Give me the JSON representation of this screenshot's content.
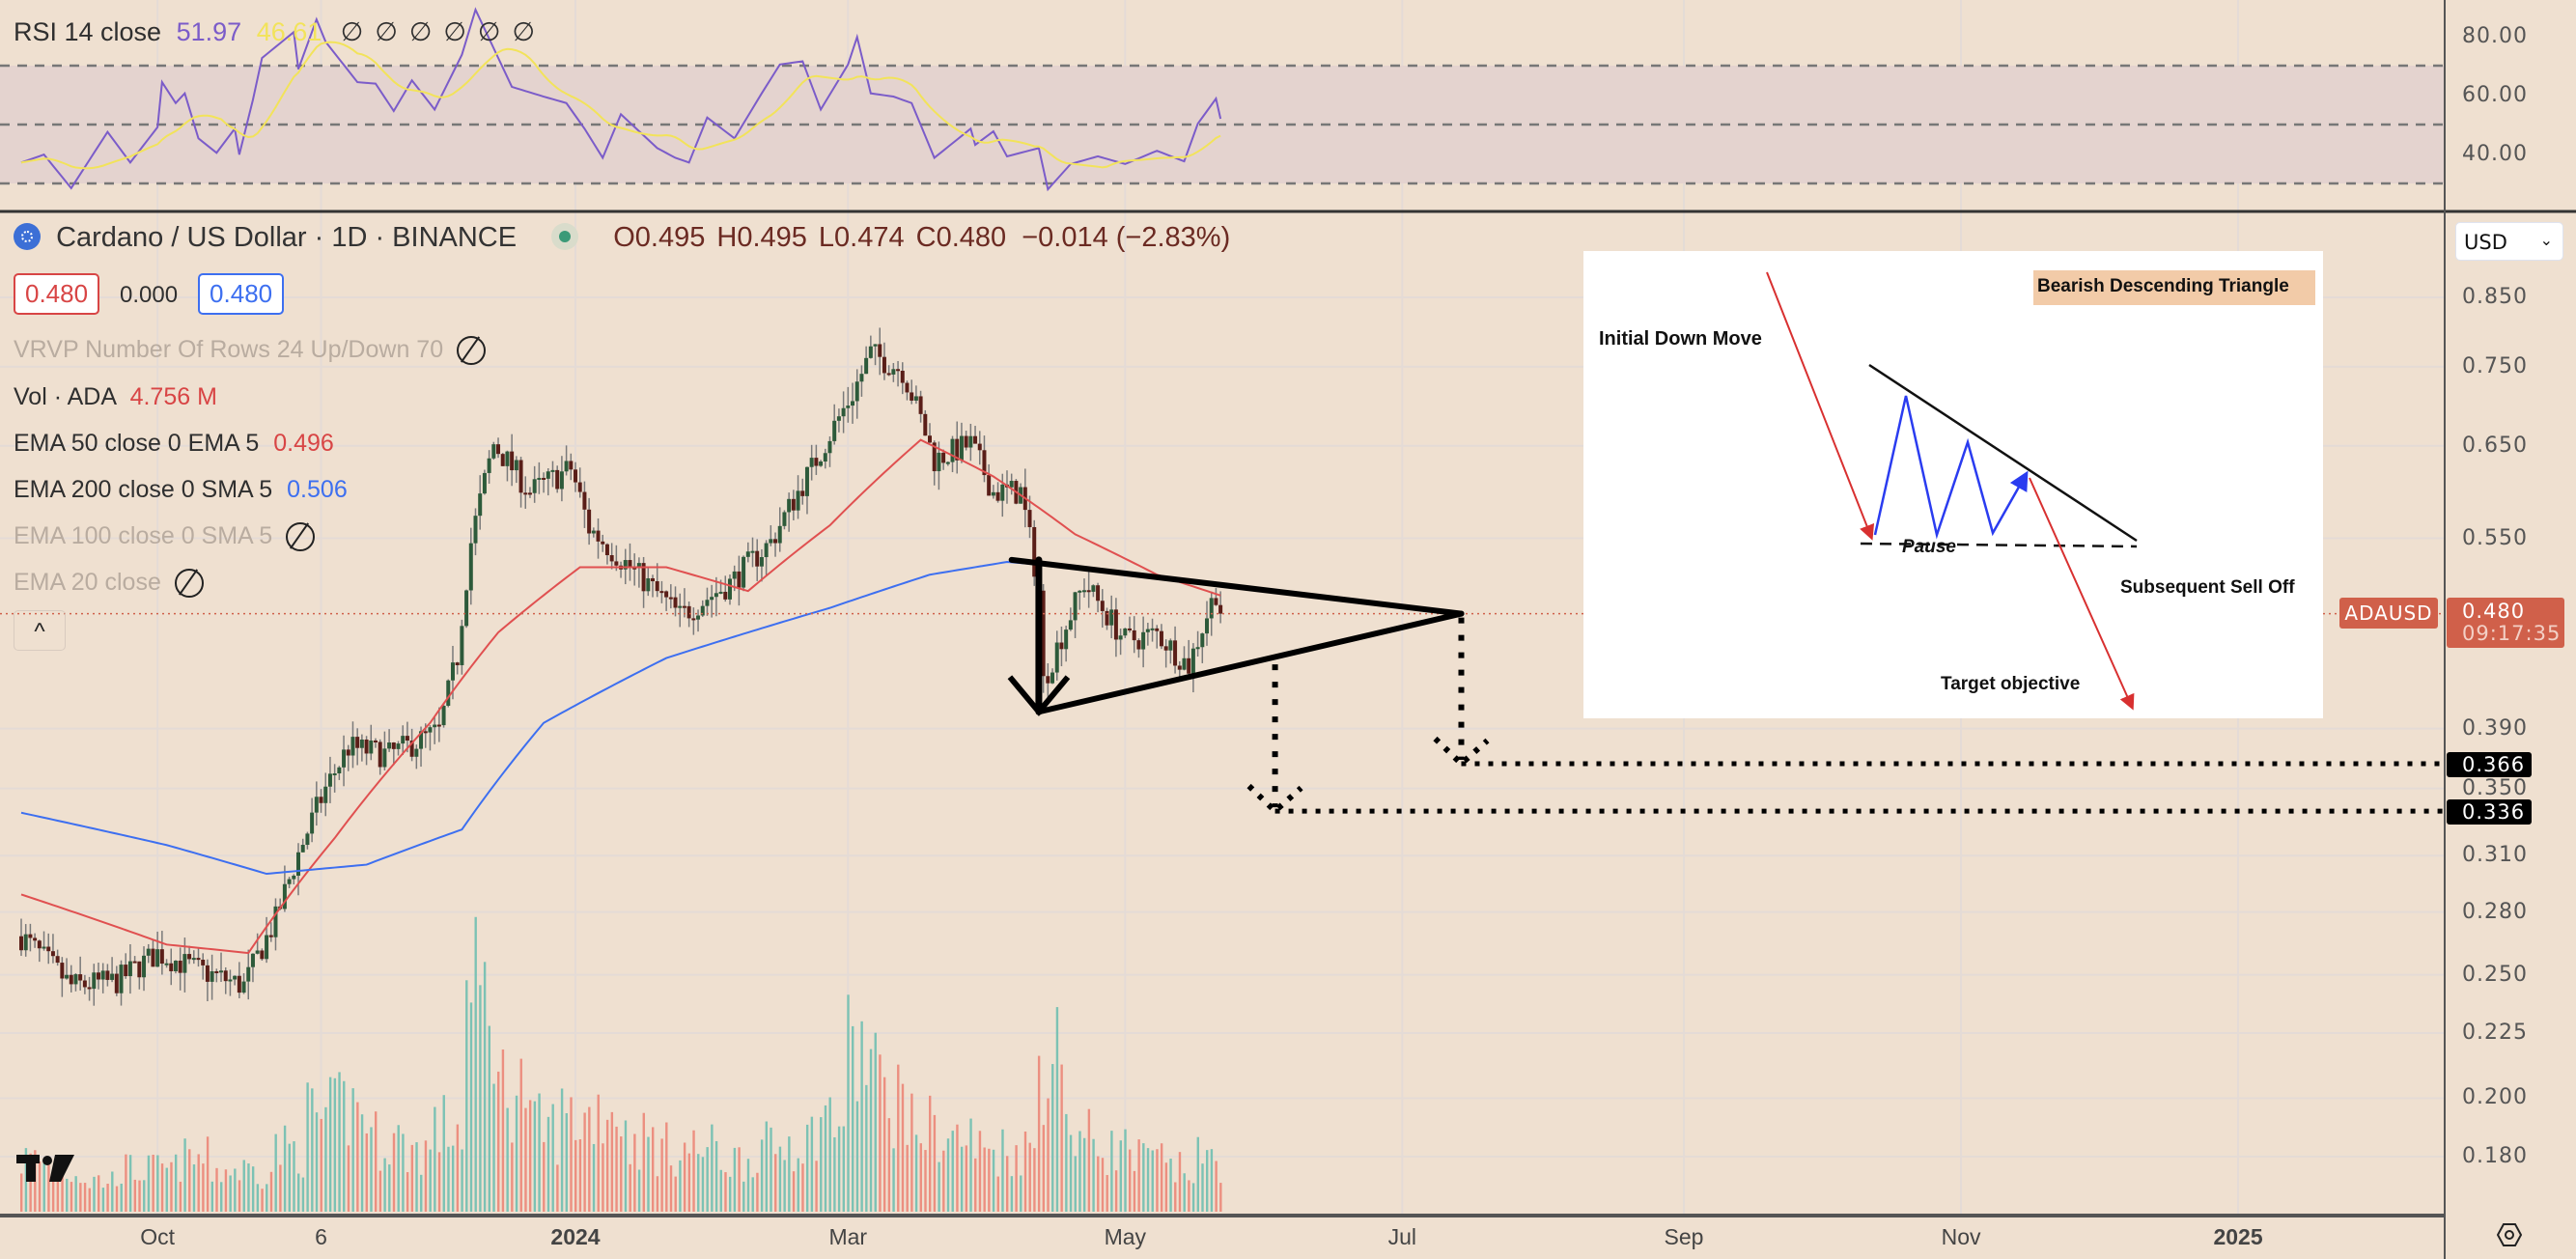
{
  "header": {
    "symbol_title": "Cardano / US Dollar · 1D · BINANCE",
    "ohlc": [
      {
        "label": "O",
        "value": "0.495"
      },
      {
        "label": "H",
        "value": "0.495"
      },
      {
        "label": "L",
        "value": "0.474"
      },
      {
        "label": "C",
        "value": "0.480"
      }
    ],
    "change": "−0.014 (−2.83%)",
    "bid": "0.480",
    "spread": "0.000",
    "ask": "0.480"
  },
  "indicators": {
    "rsi": {
      "label": "RSI 14 close",
      "value": "51.97",
      "ma_value": "46.61",
      "hidden_marks": [
        "∅",
        "∅",
        "∅",
        "∅",
        "∅",
        "∅"
      ]
    },
    "vrvp": {
      "label": "VRVP Number Of Rows 24 Up/Down 70"
    },
    "vol": {
      "label": "Vol · ADA",
      "value": "4.756 M"
    },
    "ema50": {
      "label": "EMA 50 close 0 EMA 5",
      "value": "0.496"
    },
    "ema200": {
      "label": "EMA 200 close 0 SMA 5",
      "value": "0.506"
    },
    "ema100": {
      "label": "EMA 100 close 0 SMA 5"
    },
    "ema20": {
      "label": "EMA 20 close"
    },
    "collapse_glyph": "^"
  },
  "price_axis": {
    "currency": "USD",
    "ticks": [
      "0.850",
      "0.750",
      "0.650",
      "0.550",
      "0.390",
      "0.350",
      "0.310",
      "0.280",
      "0.250",
      "0.225",
      "0.200",
      "0.180"
    ],
    "last_price_label": "ADAUSD",
    "last_price": "0.480",
    "countdown": "09:17:35",
    "target_labels": [
      "0.366",
      "0.336"
    ]
  },
  "rsi_axis": {
    "ticks": [
      "80.00",
      "60.00",
      "40.00"
    ]
  },
  "time_axis": {
    "ticks": [
      {
        "label": "Oct",
        "date": "2023-10-01"
      },
      {
        "label": "6",
        "date": "2023-11-06"
      },
      {
        "label": "2024",
        "date": "2024-01-01",
        "bold": true
      },
      {
        "label": "Mar",
        "date": "2024-03-01"
      },
      {
        "label": "May",
        "date": "2024-05-01"
      },
      {
        "label": "Jul",
        "date": "2024-07-01"
      },
      {
        "label": "Sep",
        "date": "2024-09-01"
      },
      {
        "label": "Nov",
        "date": "2024-11-01"
      },
      {
        "label": "2025",
        "date": "2025-01-01",
        "bold": true
      }
    ]
  },
  "inset": {
    "title": "Bearish Descending Triangle",
    "initial": "Initial Down Move",
    "pause": "Pause",
    "selloff": "Subsequent Sell Off",
    "target": "Target objective"
  },
  "colors": {
    "background": "#efe0d0",
    "up": "#2d5a3a",
    "down": "#5a1e18",
    "ema50": "#e05050",
    "ema200": "#3d6ff0",
    "rsi": "#7b5cc9",
    "rsi_ma": "#f2e35a",
    "vol_up": "#7cc2b4",
    "vol_down": "#ec8f80",
    "last_price": "#d0604a"
  },
  "chart_data": {
    "type": "candlestick",
    "scale": "log",
    "ylim": [
      0.165,
      0.93
    ],
    "xlim": [
      "2023-09-01",
      "2025-02-10"
    ],
    "grid": true,
    "closes": [
      [
        "2023-09-01",
        0.268
      ],
      [
        "2023-09-12",
        0.245
      ],
      [
        "2023-09-22",
        0.247
      ],
      [
        "2023-10-01",
        0.26
      ],
      [
        "2023-10-10",
        0.252
      ],
      [
        "2023-10-20",
        0.245
      ],
      [
        "2023-10-27",
        0.276
      ],
      [
        "2023-11-01",
        0.311
      ],
      [
        "2023-11-07",
        0.35
      ],
      [
        "2023-11-12",
        0.377
      ],
      [
        "2023-11-21",
        0.372
      ],
      [
        "2023-12-02",
        0.388
      ],
      [
        "2023-12-06",
        0.444
      ],
      [
        "2023-12-09",
        0.546
      ],
      [
        "2023-12-14",
        0.652
      ],
      [
        "2023-12-22",
        0.598
      ],
      [
        "2023-12-31",
        0.624
      ],
      [
        "2024-01-04",
        0.56
      ],
      [
        "2024-01-11",
        0.53
      ],
      [
        "2024-01-24",
        0.478
      ],
      [
        "2024-02-04",
        0.507
      ],
      [
        "2024-02-13",
        0.546
      ],
      [
        "2024-02-22",
        0.624
      ],
      [
        "2024-03-02",
        0.714
      ],
      [
        "2024-03-06",
        0.768
      ],
      [
        "2024-03-13",
        0.745
      ],
      [
        "2024-03-20",
        0.634
      ],
      [
        "2024-03-28",
        0.652
      ],
      [
        "2024-04-02",
        0.598
      ],
      [
        "2024-04-08",
        0.598
      ],
      [
        "2024-04-12",
        0.5
      ],
      [
        "2024-04-13",
        0.424
      ],
      [
        "2024-04-22",
        0.507
      ],
      [
        "2024-05-01",
        0.457
      ],
      [
        "2024-05-08",
        0.463
      ],
      [
        "2024-05-15",
        0.437
      ],
      [
        "2024-05-21",
        0.5
      ],
      [
        "2024-05-22",
        0.48
      ]
    ],
    "ema50": [
      [
        "2023-09-01",
        0.289
      ],
      [
        "2023-10-03",
        0.264
      ],
      [
        "2023-10-21",
        0.26
      ],
      [
        "2023-11-09",
        0.32
      ],
      [
        "2023-11-30",
        0.394
      ],
      [
        "2023-12-15",
        0.464
      ],
      [
        "2024-01-02",
        0.522
      ],
      [
        "2024-01-21",
        0.522
      ],
      [
        "2024-02-08",
        0.5
      ],
      [
        "2024-02-26",
        0.563
      ],
      [
        "2024-03-17",
        0.657
      ],
      [
        "2024-04-02",
        0.615
      ],
      [
        "2024-04-20",
        0.554
      ],
      [
        "2024-05-08",
        0.515
      ],
      [
        "2024-05-22",
        0.496
      ]
    ],
    "ema200": [
      [
        "2023-09-01",
        0.335
      ],
      [
        "2023-10-03",
        0.316
      ],
      [
        "2023-10-25",
        0.3
      ],
      [
        "2023-11-16",
        0.305
      ],
      [
        "2023-12-07",
        0.325
      ],
      [
        "2023-12-25",
        0.394
      ],
      [
        "2024-01-21",
        0.443
      ],
      [
        "2024-02-26",
        0.485
      ],
      [
        "2024-03-19",
        0.515
      ],
      [
        "2024-04-05",
        0.527
      ],
      [
        "2024-04-20",
        0.522
      ],
      [
        "2024-05-22",
        0.506
      ]
    ],
    "volume_weekly_relative": [
      0.25,
      0.2,
      0.15,
      0.2,
      0.2,
      0.25,
      0.2,
      0.2,
      0.3,
      0.45,
      0.5,
      0.35,
      0.3,
      0.4,
      1.0,
      0.6,
      0.4,
      0.45,
      0.5,
      0.35,
      0.3,
      0.3,
      0.25,
      0.3,
      0.35,
      0.45,
      0.75,
      0.55,
      0.4,
      0.35,
      0.3,
      0.3,
      0.75,
      0.35,
      0.3,
      0.25,
      0.2,
      0.25
    ],
    "rsi": {
      "bands": [
        70,
        50,
        30
      ],
      "ylim": [
        20,
        92
      ],
      "points": [
        [
          "2023-09-01",
          37.1
        ],
        [
          "2023-09-06",
          39.8
        ],
        [
          "2023-09-12",
          28.4
        ],
        [
          "2023-09-20",
          47.5
        ],
        [
          "2023-09-25",
          37.1
        ],
        [
          "2023-10-01",
          49.1
        ],
        [
          "2023-10-02",
          64.4
        ],
        [
          "2023-10-05",
          57.3
        ],
        [
          "2023-10-07",
          60.6
        ],
        [
          "2023-10-10",
          45.3
        ],
        [
          "2023-10-14",
          40.4
        ],
        [
          "2023-10-18",
          48.6
        ],
        [
          "2023-10-19",
          39.8
        ],
        [
          "2023-10-22",
          58.4
        ],
        [
          "2023-10-24",
          72.6
        ],
        [
          "2023-10-31",
          81.4
        ],
        [
          "2023-11-01",
          68.8
        ],
        [
          "2023-11-05",
          85.7
        ],
        [
          "2023-11-07",
          78.1
        ],
        [
          "2023-11-14",
          64.4
        ],
        [
          "2023-11-18",
          63.9
        ],
        [
          "2023-11-22",
          54.6
        ],
        [
          "2023-11-26",
          65
        ],
        [
          "2023-12-01",
          55.1
        ],
        [
          "2023-12-07",
          73.7
        ],
        [
          "2023-12-10",
          89
        ],
        [
          "2023-12-14",
          75.9
        ],
        [
          "2023-12-18",
          62.8
        ],
        [
          "2023-12-25",
          59.5
        ],
        [
          "2023-12-30",
          57.3
        ],
        [
          "2024-01-03",
          48.6
        ],
        [
          "2024-01-07",
          38.7
        ],
        [
          "2024-01-11",
          53.5
        ],
        [
          "2024-01-19",
          42
        ],
        [
          "2024-01-23",
          38.7
        ],
        [
          "2024-01-26",
          37.1
        ],
        [
          "2024-01-30",
          52.4
        ],
        [
          "2024-02-05",
          45.3
        ],
        [
          "2024-02-11",
          60.6
        ],
        [
          "2024-02-15",
          70.4
        ],
        [
          "2024-02-20",
          71.5
        ],
        [
          "2024-02-24",
          55.1
        ],
        [
          "2024-03-01",
          70.4
        ],
        [
          "2024-03-03",
          79.7
        ],
        [
          "2024-03-06",
          60.6
        ],
        [
          "2024-03-11",
          59.5
        ],
        [
          "2024-03-15",
          57.3
        ],
        [
          "2024-03-20",
          38.7
        ],
        [
          "2024-03-28",
          48.6
        ],
        [
          "2024-03-29",
          43.1
        ],
        [
          "2024-04-02",
          47.7
        ],
        [
          "2024-04-05",
          39.2
        ],
        [
          "2024-04-12",
          42
        ],
        [
          "2024-04-14",
          28
        ],
        [
          "2024-04-19",
          36.6
        ],
        [
          "2024-04-25",
          39.2
        ],
        [
          "2024-05-01",
          36.6
        ],
        [
          "2024-05-08",
          41.1
        ],
        [
          "2024-05-14",
          37.5
        ],
        [
          "2024-05-17",
          50.3
        ],
        [
          "2024-05-21",
          58.8
        ],
        [
          "2024-05-22",
          51.97
        ]
      ]
    },
    "drawings": {
      "triangle_upper": [
        [
          "2024-04-06",
          0.529
        ],
        [
          "2024-07-14",
          0.48
        ]
      ],
      "triangle_lower": [
        [
          "2024-04-12",
          0.402
        ],
        [
          "2024-07-14",
          0.48
        ]
      ],
      "down_arrow": [
        [
          "2024-04-12",
          0.529
        ],
        [
          "2024-04-12",
          0.402
        ]
      ],
      "projection_1": [
        [
          "2024-06-03",
          0.441
        ],
        [
          "2024-06-03",
          0.336
        ]
      ],
      "projection_2": [
        [
          "2024-07-14",
          0.48
        ],
        [
          "2024-07-14",
          0.366
        ]
      ]
    }
  }
}
